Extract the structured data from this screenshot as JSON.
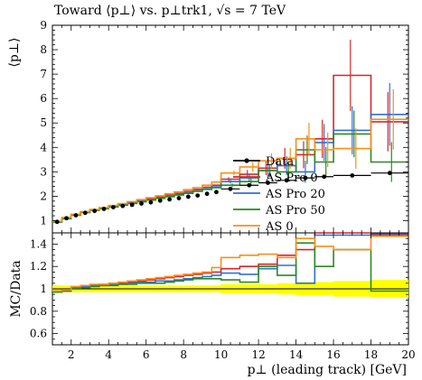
{
  "title": "Toward ⟨p⊥⟩ vs. p⊥trk1, √s = 7 TeV",
  "colors": {
    "data": "#000000",
    "AS Pro 0": "#d62728",
    "AS Pro 20": "#2f6fdb",
    "AS Pro 50": "#2a8a1f",
    "AS 0": "#ff8c1a",
    "band": "#ffff00"
  },
  "chart_data": [
    {
      "type": "line",
      "panel": "main",
      "ylabel": "⟨p⊥⟩",
      "xlim": [
        1,
        20
      ],
      "ylim": [
        0.5,
        9
      ],
      "yticks": [
        1,
        2,
        3,
        4,
        5,
        6,
        7,
        8,
        9
      ],
      "legend_position": "center-right",
      "bin_edges": [
        1.0,
        1.5,
        2.0,
        2.5,
        3.0,
        3.5,
        4.0,
        4.5,
        5.0,
        5.5,
        6.0,
        6.5,
        7.0,
        7.5,
        8.0,
        8.5,
        9.0,
        9.5,
        10.0,
        11.0,
        12.0,
        13.0,
        14.0,
        15.0,
        16.0,
        18.0,
        20.0
      ],
      "series": [
        {
          "name": "Data",
          "style": "points",
          "values": [
            0.95,
            1.1,
            1.22,
            1.32,
            1.4,
            1.48,
            1.55,
            1.6,
            1.65,
            1.7,
            1.75,
            1.82,
            1.87,
            1.92,
            1.98,
            2.03,
            2.1,
            2.17,
            2.3,
            2.45,
            2.55,
            2.65,
            2.75,
            2.8,
            2.85,
            2.95
          ]
        },
        {
          "name": "AS Pro 0",
          "style": "histogram",
          "values": [
            0.96,
            1.12,
            1.25,
            1.36,
            1.45,
            1.52,
            1.6,
            1.67,
            1.75,
            1.82,
            1.9,
            1.97,
            2.05,
            2.12,
            2.2,
            2.28,
            2.37,
            2.45,
            2.7,
            2.9,
            3.15,
            3.55,
            3.7,
            4.35,
            6.95,
            5.05
          ]
        },
        {
          "name": "AS Pro 20",
          "style": "histogram",
          "values": [
            0.95,
            1.1,
            1.24,
            1.34,
            1.43,
            1.5,
            1.58,
            1.65,
            1.72,
            1.79,
            1.85,
            1.92,
            1.99,
            2.06,
            2.14,
            2.22,
            2.3,
            2.38,
            2.6,
            2.75,
            3.05,
            3.25,
            3.0,
            4.2,
            4.7,
            5.35
          ]
        },
        {
          "name": "AS Pro 50",
          "style": "histogram",
          "values": [
            0.94,
            1.08,
            1.22,
            1.33,
            1.42,
            1.49,
            1.56,
            1.63,
            1.7,
            1.77,
            1.84,
            1.91,
            1.98,
            2.05,
            2.12,
            2.2,
            2.28,
            2.35,
            2.45,
            2.6,
            3.05,
            3.0,
            3.9,
            3.4,
            4.55,
            3.4
          ]
        },
        {
          "name": "AS 0",
          "style": "histogram",
          "values": [
            0.97,
            1.13,
            1.26,
            1.37,
            1.46,
            1.54,
            1.62,
            1.7,
            1.78,
            1.86,
            1.94,
            2.02,
            2.1,
            2.18,
            2.27,
            2.35,
            2.45,
            2.58,
            2.95,
            3.2,
            3.45,
            3.55,
            4.35,
            3.9,
            3.95,
            5.15
          ]
        }
      ],
      "legend": [
        "Data",
        "AS Pro 0",
        "AS Pro 20",
        "AS Pro 50",
        "AS 0"
      ]
    },
    {
      "type": "line",
      "panel": "ratio",
      "xlabel": "p⊥ (leading track) [GeV]",
      "ylabel": "MC/Data",
      "xlim": [
        1,
        20
      ],
      "ylim": [
        0.5,
        1.5
      ],
      "xticks": [
        2,
        4,
        6,
        8,
        10,
        12,
        14,
        16,
        18,
        20
      ],
      "yticks": [
        0.6,
        0.8,
        1,
        1.2,
        1.4
      ],
      "band": {
        "low": [
          0.97,
          0.97,
          0.97,
          0.97,
          0.97,
          0.97,
          0.97,
          0.97,
          0.97,
          0.97,
          0.97,
          0.97,
          0.97,
          0.97,
          0.97,
          0.97,
          0.97,
          0.97,
          0.96,
          0.96,
          0.96,
          0.95,
          0.94,
          0.94,
          0.93,
          0.92
        ],
        "high": [
          1.03,
          1.03,
          1.03,
          1.03,
          1.03,
          1.03,
          1.03,
          1.03,
          1.03,
          1.03,
          1.03,
          1.03,
          1.03,
          1.03,
          1.03,
          1.03,
          1.03,
          1.03,
          1.04,
          1.04,
          1.04,
          1.05,
          1.06,
          1.06,
          1.07,
          1.08
        ]
      },
      "series": [
        {
          "name": "AS Pro 0",
          "values": [
            0.97,
            0.98,
            1.0,
            1.02,
            1.03,
            1.04,
            1.04,
            1.05,
            1.06,
            1.07,
            1.08,
            1.09,
            1.1,
            1.11,
            1.12,
            1.13,
            1.14,
            1.15,
            1.18,
            1.2,
            1.22,
            1.3,
            1.35,
            1.5,
            1.5,
            1.49
          ]
        },
        {
          "name": "AS Pro 20",
          "values": [
            0.98,
            0.99,
            1.01,
            1.02,
            1.03,
            1.03,
            1.04,
            1.04,
            1.05,
            1.06,
            1.06,
            1.07,
            1.07,
            1.08,
            1.09,
            1.1,
            1.11,
            1.12,
            1.14,
            1.13,
            1.18,
            1.21,
            1.05,
            1.48,
            1.48,
            1.48
          ]
        },
        {
          "name": "AS Pro 50",
          "values": [
            0.97,
            0.98,
            1.0,
            1.01,
            1.02,
            1.03,
            1.03,
            1.04,
            1.04,
            1.05,
            1.05,
            1.05,
            1.06,
            1.07,
            1.08,
            1.09,
            1.09,
            1.09,
            1.08,
            1.06,
            1.2,
            1.12,
            1.41,
            1.2,
            1.35,
            0.98
          ]
        },
        {
          "name": "AS 0",
          "values": [
            0.98,
            0.99,
            1.02,
            1.03,
            1.04,
            1.04,
            1.05,
            1.06,
            1.07,
            1.08,
            1.09,
            1.1,
            1.11,
            1.12,
            1.13,
            1.14,
            1.15,
            1.19,
            1.28,
            1.3,
            1.31,
            1.28,
            1.45,
            1.38,
            1.35,
            1.47
          ]
        }
      ]
    }
  ]
}
